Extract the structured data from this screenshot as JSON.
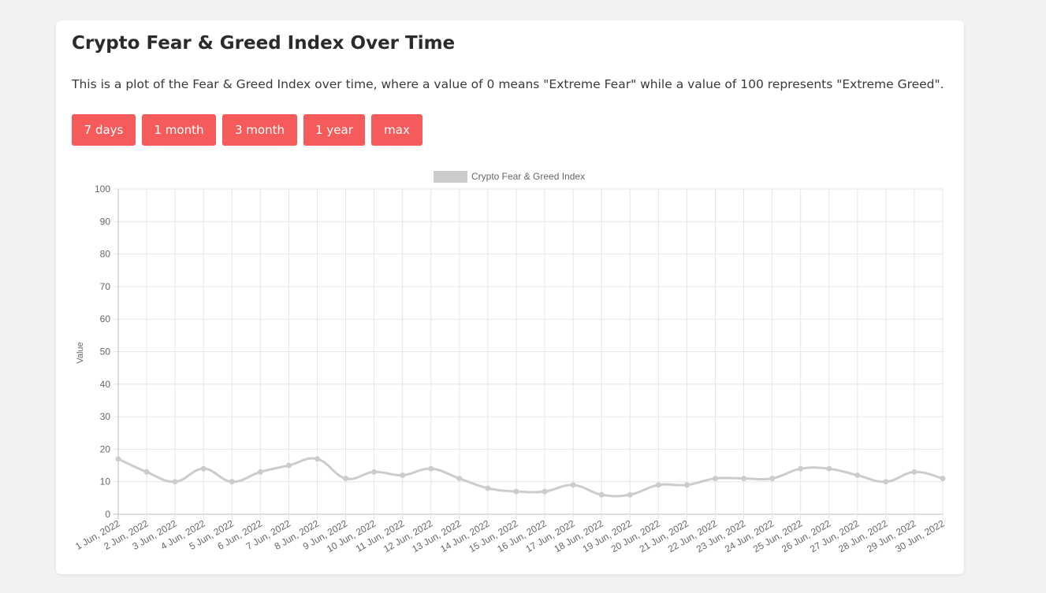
{
  "page": {
    "title": "Crypto Fear & Greed Index Over Time",
    "description": "This is a plot of the Fear & Greed Index over time, where a value of 0 means \"Extreme Fear\" while a value of 100 represents \"Extreme Greed\"."
  },
  "buttons": [
    {
      "label": "7 days"
    },
    {
      "label": "1 month"
    },
    {
      "label": "3 month"
    },
    {
      "label": "1 year"
    },
    {
      "label": "max"
    }
  ],
  "colors": {
    "accent": "#f55b5b",
    "series": "#cccccc",
    "grid": "#e6e6e6",
    "axis_text": "#666666"
  },
  "chart_data": {
    "type": "line",
    "legend": {
      "label": "Crypto Fear & Greed Index",
      "position": "top"
    },
    "ylabel": "Value",
    "xlabel": "",
    "ylim": [
      0,
      100
    ],
    "yticks": [
      0,
      10,
      20,
      30,
      40,
      50,
      60,
      70,
      80,
      90,
      100
    ],
    "grid": true,
    "categories": [
      "1 Jun, 2022",
      "2 Jun, 2022",
      "3 Jun, 2022",
      "4 Jun, 2022",
      "5 Jun, 2022",
      "6 Jun, 2022",
      "7 Jun, 2022",
      "8 Jun, 2022",
      "9 Jun, 2022",
      "10 Jun, 2022",
      "11 Jun, 2022",
      "12 Jun, 2022",
      "13 Jun, 2022",
      "14 Jun, 2022",
      "15 Jun, 2022",
      "16 Jun, 2022",
      "17 Jun, 2022",
      "18 Jun, 2022",
      "19 Jun, 2022",
      "20 Jun, 2022",
      "21 Jun, 2022",
      "22 Jun, 2022",
      "23 Jun, 2022",
      "24 Jun, 2022",
      "25 Jun, 2022",
      "26 Jun, 2022",
      "27 Jun, 2022",
      "28 Jun, 2022",
      "29 Jun, 2022",
      "30 Jun, 2022"
    ],
    "series": [
      {
        "name": "Crypto Fear & Greed Index",
        "values": [
          17,
          13,
          10,
          14,
          10,
          13,
          15,
          17,
          11,
          13,
          12,
          14,
          11,
          8,
          7,
          7,
          9,
          6,
          6,
          9,
          9,
          11,
          11,
          11,
          14,
          14,
          12,
          10,
          13,
          11
        ]
      }
    ]
  }
}
